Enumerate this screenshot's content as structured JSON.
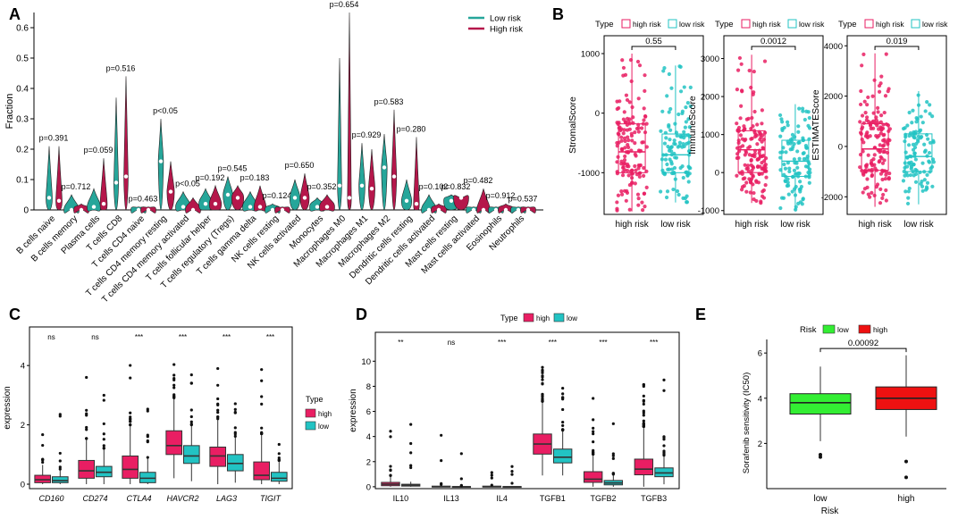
{
  "colors": {
    "low_teal": "#26a69a",
    "high_crimson": "#b5174b",
    "b_high": "#e91e63",
    "b_low": "#22c3c3",
    "e_low": "#33ee33",
    "e_high": "#ee1111"
  },
  "chart_data": [
    {
      "panel": "A",
      "type": "violin",
      "ylabel": "Fraction",
      "ylim": [
        0,
        0.65
      ],
      "yticks": [
        0.0,
        0.1,
        0.2,
        0.3,
        0.4,
        0.5,
        0.6
      ],
      "legend": [
        "Low risk",
        "High risk"
      ],
      "categories": [
        "B cells naive",
        "B cells memory",
        "Plasma cells",
        "T cells CD8",
        "T cells CD4 naive",
        "T cells CD4 memory resting",
        "T cells CD4 memory activated",
        "T cells follicular helper",
        "T cells regulatory (Tregs)",
        "T cells gamma delta",
        "NK cells resting",
        "NK cells activated",
        "Monocytes",
        "Macrophages M0",
        "Macrophages M1",
        "Macrophages M2",
        "Dendritic cells resting",
        "Dendritic cells activated",
        "Mast cells resting",
        "Mast cells activated",
        "Eosinophils",
        "Neutrophils"
      ],
      "pvalues": [
        "p=0.391",
        "p=0.712",
        "p=0.059",
        "p=0.516",
        "p=0.463",
        "p<0.05",
        "p<0.05",
        "p=0.192",
        "p=0.545",
        "p=0.183",
        "p=0.124",
        "p=0.650",
        "p=0.352",
        "p=0.654",
        "p=0.929",
        "p=0.583",
        "p=0.280",
        "p=0.102",
        "p=0.832",
        "p=0.482",
        "p=0.912",
        "p=0.537"
      ],
      "series": [
        {
          "name": "Low risk",
          "max": [
            0.21,
            0.05,
            0.07,
            0.37,
            0.01,
            0.3,
            0.06,
            0.07,
            0.11,
            0.06,
            0.02,
            0.1,
            0.04,
            0.5,
            0.22,
            0.25,
            0.1,
            0.05,
            0.05,
            0.01,
            0.01,
            0.01
          ],
          "median": [
            0.04,
            0.0,
            0.01,
            0.09,
            0.0,
            0.16,
            0.01,
            0.02,
            0.05,
            0.01,
            0.0,
            0.04,
            0.01,
            0.08,
            0.08,
            0.14,
            0.03,
            0.0,
            0.03,
            0.0,
            0.0,
            0.0
          ]
        },
        {
          "name": "High risk",
          "max": [
            0.21,
            0.02,
            0.17,
            0.44,
            0.01,
            0.16,
            0.04,
            0.08,
            0.08,
            0.08,
            0.01,
            0.12,
            0.05,
            0.65,
            0.2,
            0.33,
            0.24,
            0.02,
            0.04,
            0.07,
            0.02,
            0.01
          ],
          "median": [
            0.03,
            0.0,
            0.02,
            0.11,
            0.0,
            0.06,
            0.0,
            0.02,
            0.04,
            0.01,
            0.0,
            0.04,
            0.01,
            0.04,
            0.07,
            0.11,
            0.02,
            0.0,
            0.04,
            0.0,
            0.0,
            0.0
          ]
        }
      ]
    },
    {
      "panel": "B",
      "type": "boxplot",
      "legend_title": "Type",
      "legend": [
        "high risk",
        "low risk"
      ],
      "categories": [
        "high risk",
        "low risk"
      ],
      "plots": [
        {
          "ylabel": "StromalScore",
          "ylim": [
            -1700,
            1300
          ],
          "yticks": [
            -1000,
            0,
            1000
          ],
          "pvalue": "0.55",
          "high": {
            "min": -1650,
            "q1": -1000,
            "median": -650,
            "q3": -180,
            "max": 1000
          },
          "low": {
            "min": -1500,
            "q1": -1000,
            "median": -700,
            "q3": -350,
            "max": 800
          }
        },
        {
          "ylabel": "ImmuneScore",
          "ylim": [
            -1100,
            3600
          ],
          "yticks": [
            -1000,
            0,
            1000,
            2000,
            3000
          ],
          "pvalue": "0.0012",
          "high": {
            "min": -800,
            "q1": 0,
            "median": 600,
            "q3": 1100,
            "max": 3100
          },
          "low": {
            "min": -1000,
            "q1": -100,
            "median": 300,
            "q3": 850,
            "max": 1800
          }
        },
        {
          "ylabel": "ESTIMATEScore",
          "ylim": [
            -2700,
            4400
          ],
          "yticks": [
            -2000,
            0,
            2000,
            4000
          ],
          "pvalue": "0.019",
          "high": {
            "min": -2400,
            "q1": -950,
            "median": -100,
            "q3": 900,
            "max": 3700
          },
          "low": {
            "min": -2300,
            "q1": -1000,
            "median": -400,
            "q3": 500,
            "max": 2200
          }
        }
      ]
    },
    {
      "panel": "C",
      "type": "boxplot",
      "ylabel": "expression",
      "ylim": [
        -0.15,
        5.3
      ],
      "yticks": [
        0,
        2,
        4
      ],
      "legend_title": "Type",
      "legend": [
        "high",
        "low"
      ],
      "categories": [
        "CD160",
        "CD274",
        "CTLA4",
        "HAVCR2",
        "LAG3",
        "TIGIT"
      ],
      "significance": [
        "ns",
        "ns",
        "***",
        "***",
        "***",
        "***"
      ],
      "series": [
        {
          "name": "high",
          "min": [
            0,
            0,
            0,
            0.2,
            0,
            0
          ],
          "q1": [
            0.05,
            0.2,
            0.2,
            1.0,
            0.6,
            0.15
          ],
          "median": [
            0.15,
            0.45,
            0.5,
            1.3,
            0.95,
            0.3
          ],
          "q3": [
            0.3,
            0.8,
            0.95,
            1.8,
            1.25,
            0.75
          ],
          "max": [
            0.65,
            1.5,
            2.0,
            2.9,
            2.2,
            1.7
          ]
        },
        {
          "name": "low",
          "min": [
            0,
            0,
            0,
            0.1,
            0.05,
            0
          ],
          "q1": [
            0.05,
            0.25,
            0.05,
            0.7,
            0.45,
            0.1
          ],
          "median": [
            0.12,
            0.4,
            0.2,
            0.95,
            0.7,
            0.2
          ],
          "q3": [
            0.25,
            0.6,
            0.4,
            1.3,
            1.0,
            0.4
          ],
          "max": [
            0.5,
            1.2,
            0.9,
            2.0,
            1.6,
            0.8
          ]
        }
      ]
    },
    {
      "panel": "D",
      "type": "boxplot",
      "ylabel": "expression",
      "ylim": [
        -0.15,
        12.3
      ],
      "yticks": [
        0,
        2,
        4,
        6,
        8,
        10
      ],
      "legend_title": "Type",
      "legend": [
        "high",
        "low"
      ],
      "categories": [
        "IL10",
        "IL13",
        "IL4",
        "TGFB1",
        "TGFB2",
        "TGFB3"
      ],
      "significance": [
        "**",
        "ns",
        "***",
        "***",
        "***",
        "***"
      ],
      "series": [
        {
          "name": "high",
          "min": [
            0,
            0,
            0,
            0.9,
            0,
            0
          ],
          "q1": [
            0.08,
            0,
            0,
            2.6,
            0.35,
            0.95
          ],
          "median": [
            0.2,
            0,
            0,
            3.4,
            0.6,
            1.4
          ],
          "q3": [
            0.35,
            0.05,
            0.05,
            4.2,
            1.2,
            2.2
          ],
          "max": [
            0.9,
            0.1,
            0.1,
            6.8,
            2.6,
            4.8
          ]
        },
        {
          "name": "low",
          "min": [
            0,
            0,
            0,
            0.9,
            0,
            0.2
          ],
          "q1": [
            0.05,
            0,
            0,
            1.9,
            0.15,
            0.8
          ],
          "median": [
            0.12,
            0,
            0,
            2.35,
            0.3,
            1.1
          ],
          "q3": [
            0.2,
            0.02,
            0.02,
            3.0,
            0.5,
            1.5
          ],
          "max": [
            0.4,
            0.05,
            0.05,
            4.5,
            1.0,
            2.5
          ]
        }
      ]
    },
    {
      "panel": "E",
      "type": "boxplot",
      "xlabel": "Risk",
      "ylabel": "Sorafenib sensitivity (IC50)",
      "ylim": [
        0.0,
        6.6
      ],
      "yticks": [
        2,
        4,
        6
      ],
      "legend_title": "Risk",
      "legend": [
        "low",
        "high"
      ],
      "categories": [
        "low",
        "high"
      ],
      "pvalue": "0.00092",
      "series": [
        {
          "name": "low",
          "min": 2.1,
          "q1": 3.3,
          "median": 3.8,
          "q3": 4.2,
          "max": 5.4
        },
        {
          "name": "high",
          "min": 2.3,
          "q1": 3.5,
          "median": 4.0,
          "q3": 4.5,
          "max": 5.9
        }
      ]
    }
  ]
}
